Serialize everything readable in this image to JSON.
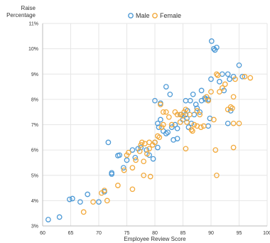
{
  "chart_data": {
    "type": "scatter",
    "title": "",
    "xlabel": "Employee Review Score",
    "ylabel_lines": [
      "Raise",
      "Percentage"
    ],
    "xlim": [
      60,
      100
    ],
    "ylim": [
      3,
      11
    ],
    "x_ticks": [
      60,
      65,
      70,
      75,
      80,
      85,
      90,
      95,
      100
    ],
    "y_ticks": [
      3,
      4,
      5,
      6,
      7,
      8,
      9,
      10,
      11
    ],
    "y_tick_labels": [
      "3%",
      "4%",
      "5%",
      "6%",
      "7%",
      "8%",
      "9%",
      "10%",
      "11%"
    ],
    "grid": "both",
    "legend_position": "top-center",
    "series": [
      {
        "name": "Male",
        "color": "#4e9ad6",
        "points": [
          [
            61,
            3.25
          ],
          [
            63,
            3.35
          ],
          [
            64.8,
            4.05
          ],
          [
            65.3,
            4.08
          ],
          [
            66.7,
            3.95
          ],
          [
            68,
            4.25
          ],
          [
            70,
            3.95
          ],
          [
            71,
            4.35
          ],
          [
            71.7,
            6.3
          ],
          [
            72.3,
            5.05
          ],
          [
            72.3,
            5.1
          ],
          [
            73.4,
            5.78
          ],
          [
            73.7,
            5.8
          ],
          [
            74.4,
            5.3
          ],
          [
            75,
            5.6
          ],
          [
            76,
            6.0
          ],
          [
            76.5,
            5.7
          ],
          [
            77.5,
            6.1
          ],
          [
            77,
            6.05
          ],
          [
            78.5,
            6.0
          ],
          [
            79,
            5.8
          ],
          [
            79.7,
            5.65
          ],
          [
            80,
            6.3
          ],
          [
            80.5,
            6.1
          ],
          [
            80.7,
            6.9
          ],
          [
            81,
            7.2
          ],
          [
            81.5,
            6.75
          ],
          [
            82,
            6.65
          ],
          [
            82.3,
            6.7
          ],
          [
            83,
            6.9
          ],
          [
            83.6,
            7.0
          ],
          [
            84,
            6.85
          ],
          [
            84.7,
            7.4
          ],
          [
            85,
            7.2
          ],
          [
            85.5,
            7.4
          ],
          [
            85.7,
            7.25
          ],
          [
            86,
            6.9
          ],
          [
            86.5,
            7.05
          ],
          [
            87,
            7.4
          ],
          [
            87.3,
            7.8
          ],
          [
            88,
            7.5
          ],
          [
            88.3,
            7.95
          ],
          [
            89,
            8.0
          ],
          [
            89.5,
            6.95
          ],
          [
            89.8,
            7.25
          ],
          [
            80,
            7.95
          ],
          [
            81,
            7.85
          ],
          [
            82,
            8.5
          ],
          [
            82.7,
            8.2
          ],
          [
            83.3,
            6.4
          ],
          [
            85.5,
            7.95
          ],
          [
            85.8,
            7.55
          ],
          [
            86.3,
            7.95
          ],
          [
            86.8,
            8.2
          ],
          [
            87.5,
            7.65
          ],
          [
            88.3,
            8.35
          ],
          [
            88.9,
            8.05
          ],
          [
            89.5,
            8.0
          ],
          [
            90,
            8.8
          ],
          [
            90.5,
            10.0
          ],
          [
            90.1,
            10.3
          ],
          [
            91,
            10.05
          ],
          [
            90.7,
            9.95
          ],
          [
            91.5,
            8.7
          ],
          [
            92,
            9.0
          ],
          [
            92.3,
            8.35
          ],
          [
            93,
            9.0
          ],
          [
            93.3,
            8.8
          ],
          [
            93.5,
            7.55
          ],
          [
            94,
            8.9
          ],
          [
            95,
            9.35
          ],
          [
            95.6,
            8.9
          ],
          [
            93,
            7.05
          ],
          [
            84,
            6.45
          ],
          [
            80.5,
            7.05
          ]
        ]
      },
      {
        "name": "Female",
        "color": "#f2a93b",
        "points": [
          [
            67.3,
            3.55
          ],
          [
            69,
            3.95
          ],
          [
            70.5,
            4.3
          ],
          [
            71,
            4.4
          ],
          [
            71.5,
            4.0
          ],
          [
            73.4,
            4.6
          ],
          [
            74.5,
            5.2
          ],
          [
            75,
            5.8
          ],
          [
            75.3,
            5.9
          ],
          [
            76,
            5.3
          ],
          [
            76,
            4.45
          ],
          [
            76.6,
            5.6
          ],
          [
            77.3,
            5.95
          ],
          [
            77.5,
            6.2
          ],
          [
            77.7,
            6.3
          ],
          [
            78,
            5.55
          ],
          [
            78.2,
            6.25
          ],
          [
            78.6,
            5.85
          ],
          [
            79,
            6.05
          ],
          [
            79,
            6.3
          ],
          [
            79.6,
            6.2
          ],
          [
            80,
            6.3
          ],
          [
            80.5,
            6.55
          ],
          [
            80.8,
            6.5
          ],
          [
            81.2,
            6.9
          ],
          [
            81.5,
            7.0
          ],
          [
            81.5,
            7.5
          ],
          [
            82,
            7.5
          ],
          [
            82.5,
            7.3
          ],
          [
            83,
            7.0
          ],
          [
            83.6,
            7.5
          ],
          [
            84,
            7.4
          ],
          [
            84.5,
            7.1
          ],
          [
            85,
            7.35
          ],
          [
            85.2,
            7.5
          ],
          [
            85.5,
            7.6
          ],
          [
            85.7,
            7.1
          ],
          [
            86.2,
            7.4
          ],
          [
            86.5,
            6.8
          ],
          [
            86.7,
            6.75
          ],
          [
            87,
            7.0
          ],
          [
            87.5,
            7.55
          ],
          [
            88,
            7.4
          ],
          [
            88.2,
            6.9
          ],
          [
            88.7,
            6.95
          ],
          [
            89.2,
            8.1
          ],
          [
            89.5,
            7.95
          ],
          [
            90,
            8.3
          ],
          [
            90.5,
            7.2
          ],
          [
            91,
            9.0
          ],
          [
            91.2,
            8.95
          ],
          [
            91.5,
            8.3
          ],
          [
            92,
            8.45
          ],
          [
            92.5,
            8.6
          ],
          [
            93,
            7.6
          ],
          [
            93.5,
            7.7
          ],
          [
            93.8,
            7.65
          ],
          [
            94,
            8.1
          ],
          [
            94.3,
            8.8
          ],
          [
            95,
            7.05
          ],
          [
            96,
            8.9
          ],
          [
            97,
            8.85
          ],
          [
            78,
            5.0
          ],
          [
            79.2,
            4.95
          ],
          [
            85.5,
            6.05
          ],
          [
            90.8,
            6.0
          ],
          [
            91,
            5.0
          ],
          [
            94,
            6.1
          ],
          [
            94,
            7.05
          ],
          [
            84.5,
            7.4
          ],
          [
            87.5,
            6.95
          ],
          [
            81,
            7.8
          ]
        ]
      }
    ]
  }
}
